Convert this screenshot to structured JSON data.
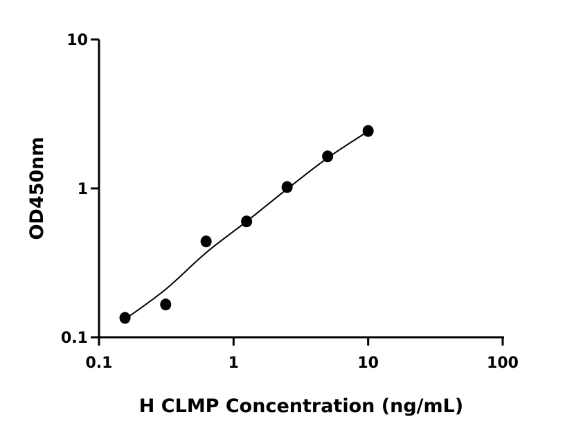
{
  "chart_data": {
    "type": "scatter",
    "title": "",
    "xlabel": "H CLMP Concentration (ng/mL)",
    "ylabel": "OD450nm",
    "x_scale": "log",
    "y_scale": "log",
    "xlim": [
      0.1,
      100
    ],
    "ylim": [
      0.1,
      10
    ],
    "x_ticks": [
      "0.1",
      "1",
      "10",
      "100"
    ],
    "y_ticks": [
      "0.1",
      "1",
      "10"
    ],
    "x_tick_values": [
      0.1,
      1,
      10,
      100
    ],
    "y_tick_values": [
      0.1,
      1,
      10
    ],
    "grid": false,
    "marker_color": "#000000",
    "points": [
      {
        "x": 0.156,
        "y": 0.135
      },
      {
        "x": 0.313,
        "y": 0.166
      },
      {
        "x": 0.625,
        "y": 0.44
      },
      {
        "x": 1.25,
        "y": 0.6
      },
      {
        "x": 2.5,
        "y": 1.02
      },
      {
        "x": 5,
        "y": 1.64
      },
      {
        "x": 10,
        "y": 2.43
      }
    ],
    "fit_curve": [
      {
        "x": 0.156,
        "y": 0.132
      },
      {
        "x": 0.313,
        "y": 0.21
      },
      {
        "x": 0.625,
        "y": 0.37
      },
      {
        "x": 1.25,
        "y": 0.6
      },
      {
        "x": 2.5,
        "y": 0.99
      },
      {
        "x": 5,
        "y": 1.6
      },
      {
        "x": 10,
        "y": 2.42
      }
    ]
  }
}
